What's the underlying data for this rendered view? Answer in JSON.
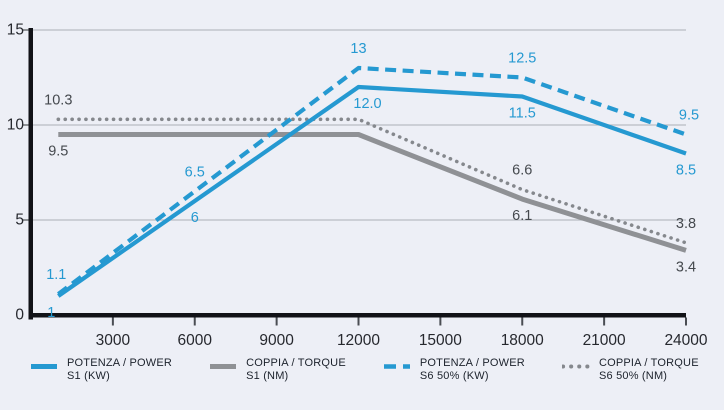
{
  "colors": {
    "background": "#edeff6",
    "axis": "#111217",
    "grid": "#b9bcc3",
    "y_tick": "#8f9296",
    "x_tick": "#4a4d53",
    "axis_text": "#26282e",
    "blue": "#2599d1",
    "gray": "#8f9195",
    "gray_label": "#45494e"
  },
  "chart_data": {
    "type": "line",
    "title": "",
    "xlabel": "",
    "ylabel": "",
    "grid": "horizontal-only",
    "legend_position": "bottom",
    "x_axis": {
      "min": 0,
      "max": 24000,
      "tick_values": [
        3000,
        6000,
        9000,
        12000,
        15000,
        18000,
        21000,
        24000
      ],
      "tick_labels": [
        "3000",
        "6000",
        "9000",
        "12000",
        "15000",
        "18000",
        "21000",
        "24000"
      ]
    },
    "y_axis": {
      "min": 0,
      "max": 15,
      "tick_values": [
        0,
        5,
        10,
        15
      ],
      "tick_labels": [
        "0",
        "5",
        "10",
        "15"
      ]
    },
    "series": [
      {
        "name": "POTENZA / POWER S1 (KW)",
        "legend_line1": "POTENZA / POWER",
        "legend_line2": "S1 (KW)",
        "style": "solid",
        "color": "#2599d1",
        "label_color": "#2599d1",
        "width": 4.2,
        "z": 4,
        "points": [
          [
            1000,
            1
          ],
          [
            12000,
            12
          ],
          [
            18000,
            11.5
          ],
          [
            24000,
            8.5
          ]
        ],
        "labels": [
          {
            "t": "1",
            "x": 1000,
            "v": 1,
            "pos": "below",
            "dx": -7
          },
          {
            "t": "6",
            "x": 6000,
            "v": 6,
            "pos": "below"
          },
          {
            "t": "12.0",
            "x": 12000,
            "v": 12,
            "pos": "below",
            "dx": 9
          },
          {
            "t": "11.5",
            "x": 18000,
            "v": 11.5,
            "pos": "below"
          },
          {
            "t": "8.5",
            "x": 24000,
            "v": 8.5,
            "pos": "below"
          }
        ]
      },
      {
        "name": "COPPIA / TORQUE S1 (NM)",
        "legend_line1": "COPPIA / TORQUE",
        "legend_line2": "S1 (NM)",
        "style": "solid",
        "color": "#8f9195",
        "label_color": "#45494e",
        "width": 5,
        "z": 2,
        "points": [
          [
            1000,
            9.5
          ],
          [
            12000,
            9.5
          ],
          [
            18000,
            6.1
          ],
          [
            24000,
            3.4
          ]
        ],
        "labels": [
          {
            "t": "9.5",
            "x": 1000,
            "v": 9.5,
            "pos": "below"
          },
          {
            "t": "6.1",
            "x": 18000,
            "v": 6.1,
            "pos": "below"
          },
          {
            "t": "3.4",
            "x": 24000,
            "v": 3.4,
            "pos": "below"
          }
        ]
      },
      {
        "name": "POTENZA / POWER S6 50% (KW)",
        "legend_line1": "POTENZA / POWER",
        "legend_line2": "S6 50% (KW)",
        "style": "dashed",
        "color": "#2599d1",
        "label_color": "#2599d1",
        "width": 4.2,
        "z": 3,
        "points": [
          [
            1000,
            1.1
          ],
          [
            12000,
            13
          ],
          [
            18000,
            12.5
          ],
          [
            24000,
            9.5
          ]
        ],
        "labels": [
          {
            "t": "1.1",
            "x": 1000,
            "v": 1.1,
            "pos": "above",
            "dx": -2
          },
          {
            "t": "6.5",
            "x": 6000,
            "v": 6.5,
            "pos": "above"
          },
          {
            "t": "13",
            "x": 12000,
            "v": 13,
            "pos": "above"
          },
          {
            "t": "12.5",
            "x": 18000,
            "v": 12.5,
            "pos": "above"
          },
          {
            "t": "9.5",
            "x": 24000,
            "v": 9.5,
            "pos": "above",
            "dx": 3
          }
        ]
      },
      {
        "name": "COPPIA / TORQUE S6 50% (NM)",
        "legend_line1": "COPPIA / TORQUE",
        "legend_line2": "S6 50% (NM)",
        "style": "dotted",
        "color": "#85888d",
        "label_color": "#45494e",
        "width": 3.6,
        "z": 1,
        "points": [
          [
            1000,
            10.3
          ],
          [
            12000,
            10.3
          ],
          [
            18000,
            6.6
          ],
          [
            24000,
            3.8
          ]
        ],
        "labels": [
          {
            "t": "10.3",
            "x": 1000,
            "v": 10.3,
            "pos": "above"
          },
          {
            "t": "6.6",
            "x": 18000,
            "v": 6.6,
            "pos": "above"
          },
          {
            "t": "3.8",
            "x": 24000,
            "v": 3.8,
            "pos": "above"
          }
        ]
      }
    ]
  }
}
